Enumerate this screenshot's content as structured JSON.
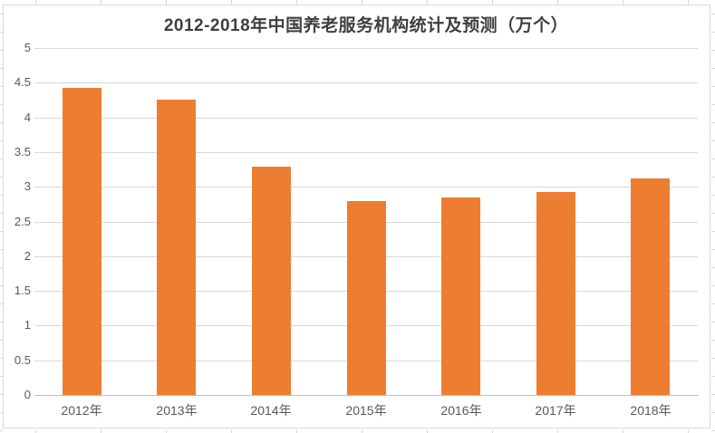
{
  "chart_data": {
    "type": "bar",
    "title": "2012-2018年中国养老服务机构统计及预测（万个）",
    "categories": [
      "2012年",
      "2013年",
      "2014年",
      "2015年",
      "2016年",
      "2017年",
      "2018年"
    ],
    "values": [
      4.42,
      4.25,
      3.29,
      2.79,
      2.85,
      2.92,
      3.12
    ],
    "xlabel": "",
    "ylabel": "",
    "ylim": [
      0,
      5
    ],
    "yticks": [
      0,
      0.5,
      1,
      1.5,
      2,
      2.5,
      3,
      3.5,
      4,
      4.5,
      5
    ],
    "ytick_labels": [
      "0",
      "0.5",
      "1",
      "1.5",
      "2",
      "2.5",
      "3",
      "3.5",
      "4",
      "4.5",
      "5"
    ],
    "grid": true,
    "legend_position": "none",
    "data_labels": false
  },
  "colors": {
    "bar": "#ED7D31",
    "title_text": "#3F3F3F",
    "axis_text": "#595959",
    "gridline": "#D9D9D9",
    "axis_line": "#BFBFBF",
    "chart_border": "#D9D9D9",
    "worksheet_gridline": "#D9D9D9",
    "background": "#FFFFFF"
  }
}
